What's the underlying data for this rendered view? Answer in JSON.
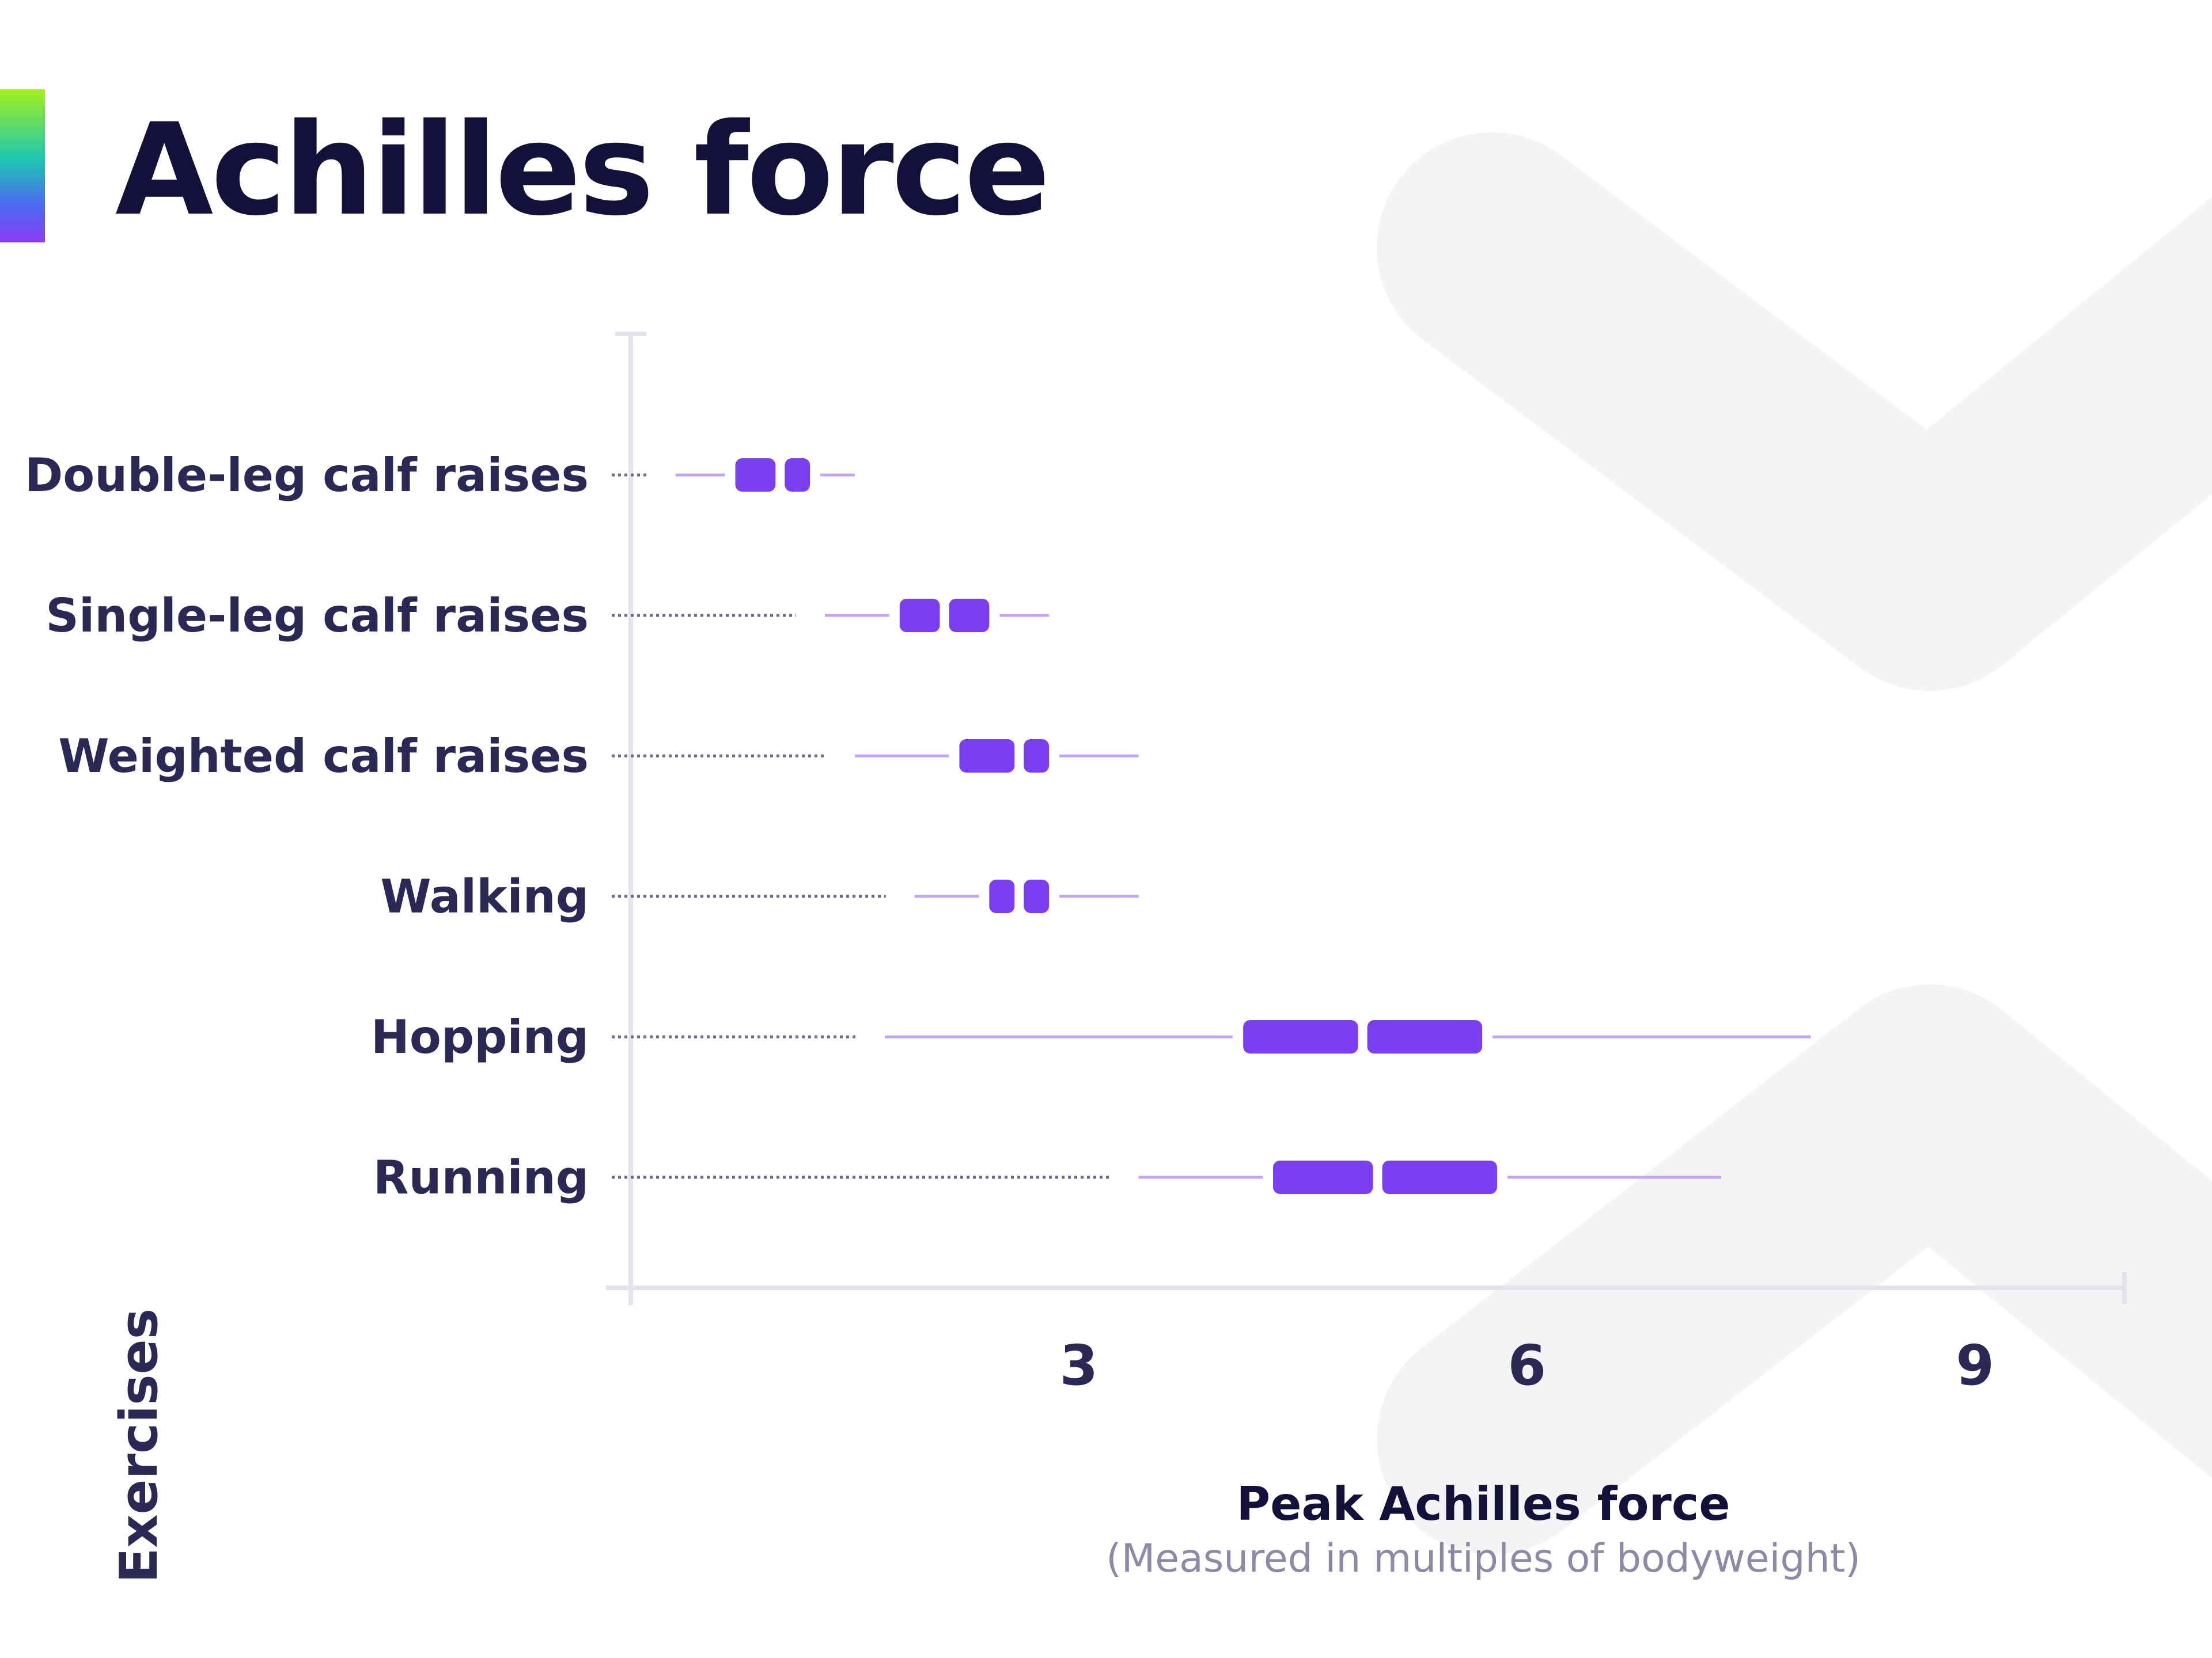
{
  "title": "Achilles force",
  "colors": {
    "title": "#13103a",
    "box": "#7b3ff2",
    "whisker": "#c3a6f6",
    "axis": "#e4e2ea",
    "label": "#2b2856",
    "subtitle": "#8d8aa8",
    "watermark": "#f4f4f6"
  },
  "chart_data": {
    "type": "box",
    "orientation": "horizontal",
    "categories": [
      "Double-leg calf raises",
      "Single-leg calf raises",
      "Weighted calf raises",
      "Walking",
      "Hopping",
      "Running"
    ],
    "series": [
      {
        "whisker_low": [
          0.3,
          1.3,
          1.5,
          1.9,
          1.7,
          3.4
        ],
        "q1": [
          0.7,
          1.8,
          2.2,
          2.4,
          4.1,
          4.3
        ],
        "median": [
          1.0,
          2.1,
          2.6,
          2.6,
          4.9,
          5.0
        ],
        "q3": [
          1.2,
          2.4,
          2.8,
          2.8,
          5.7,
          5.8
        ],
        "whisker_high": [
          1.5,
          2.8,
          3.4,
          3.4,
          7.9,
          7.3
        ]
      }
    ],
    "x_ticks": [
      "3",
      "6",
      "9"
    ],
    "x_tick_values": [
      3,
      6,
      9
    ],
    "xlim": [
      0,
      10
    ],
    "xlabel": "Peak Achilles force",
    "xlabel_note": "(Measured in multiples of bodyweight)",
    "ylabel": "Exercises",
    "grid": false,
    "legend": "none"
  }
}
